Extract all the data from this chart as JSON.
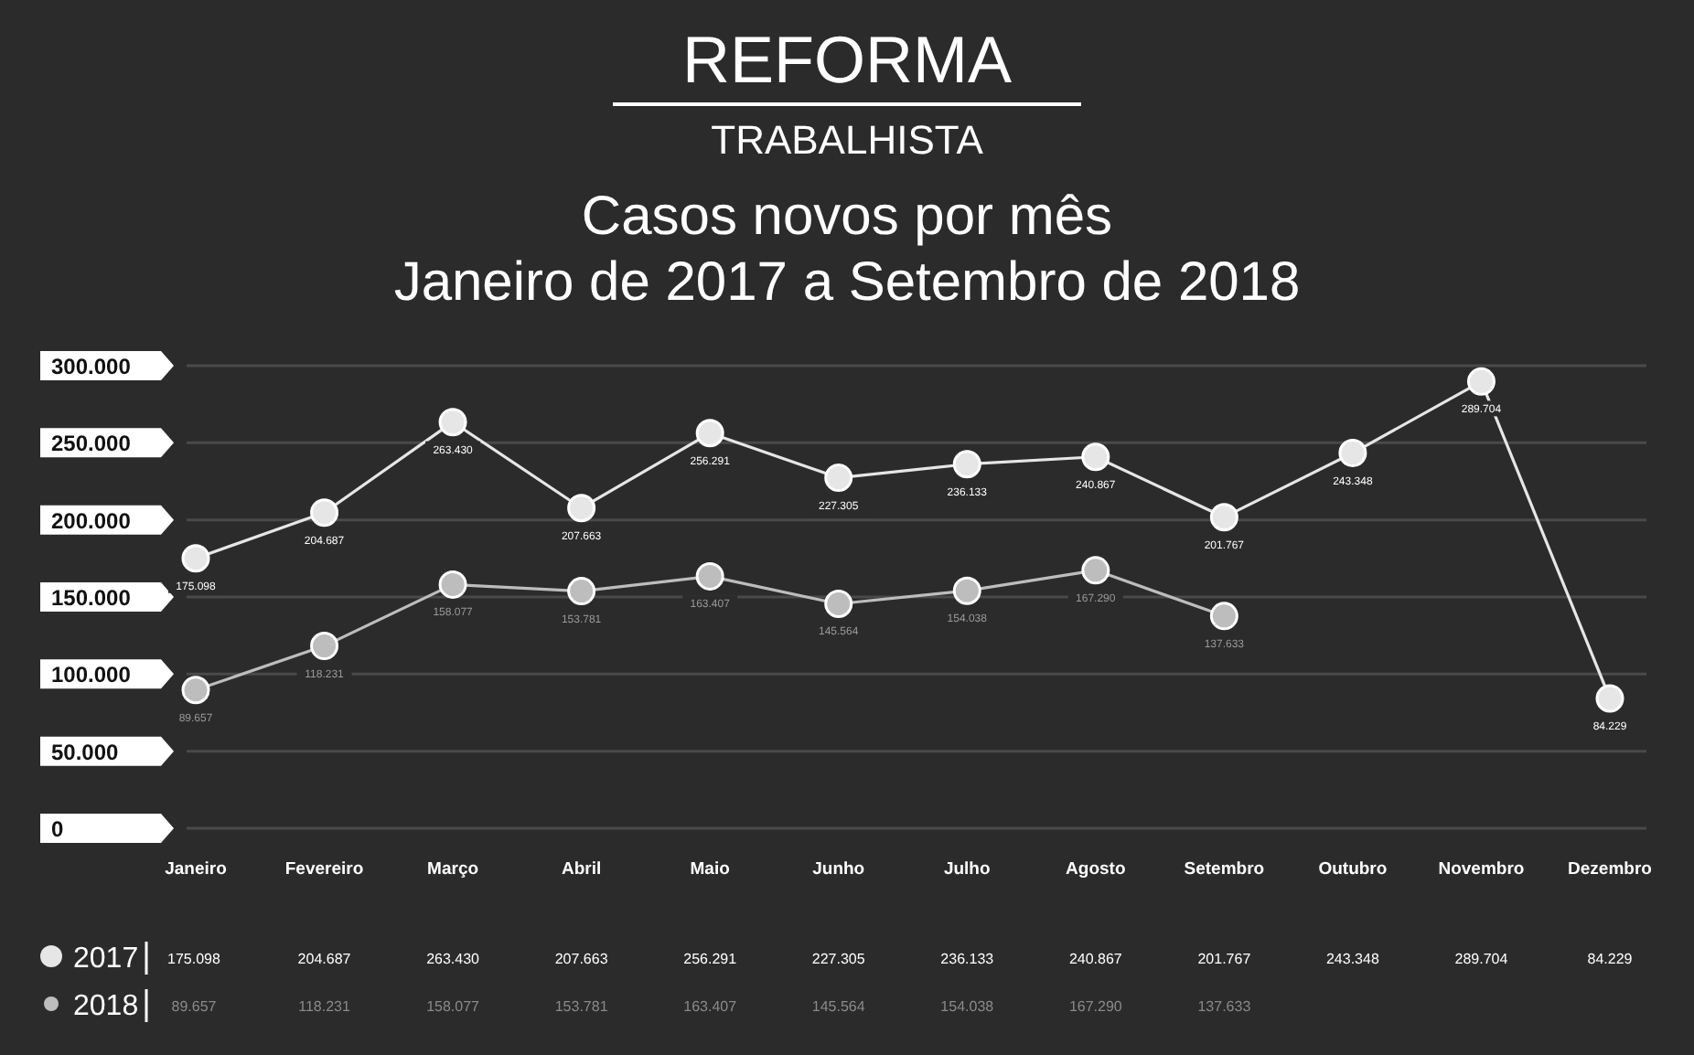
{
  "chart_data": {
    "type": "line",
    "title": "REFORMA",
    "subtitle": "TRABALHISTA",
    "annotations": [
      "Casos novos por mês",
      "Janeiro de 2017 a Setembro de 2018"
    ],
    "categories": [
      "Janeiro",
      "Fevereiro",
      "Março",
      "Abril",
      "Maio",
      "Junho",
      "Julho",
      "Agosto",
      "Setembro",
      "Outubro",
      "Novembro",
      "Dezembro"
    ],
    "series": [
      {
        "name": "2017",
        "color": "#e6e6e6",
        "values": [
          175098,
          204687,
          263430,
          207663,
          256291,
          227305,
          236133,
          240867,
          201767,
          243348,
          289704,
          84229
        ],
        "value_labels": [
          "175.098",
          "204.687",
          "263.430",
          "207.663",
          "256.291",
          "227.305",
          "236.133",
          "240.867",
          "201.767",
          "243.348",
          "289.704",
          "84.229"
        ]
      },
      {
        "name": "2018",
        "color": "#bdbdbd",
        "values": [
          89657,
          118231,
          158077,
          153781,
          163407,
          145564,
          154038,
          167290,
          137633,
          null,
          null,
          null
        ],
        "value_labels": [
          "89.657",
          "118.231",
          "158.077",
          "153.781",
          "163.407",
          "145.564",
          "154.038",
          "167.290",
          "137.633",
          null,
          null,
          null
        ]
      }
    ],
    "ylim": [
      0,
      300000
    ],
    "yticks": [
      {
        "value": 0,
        "label": "0"
      },
      {
        "value": 50000,
        "label": "50.000"
      },
      {
        "value": 100000,
        "label": "100.000"
      },
      {
        "value": 150000,
        "label": "150.000"
      },
      {
        "value": 200000,
        "label": "200.000"
      },
      {
        "value": 250000,
        "label": "250.000"
      },
      {
        "value": 300000,
        "label": "300.000"
      }
    ],
    "grid": "y",
    "legend": "bottom",
    "marker": "circle",
    "line_style": "solid"
  }
}
